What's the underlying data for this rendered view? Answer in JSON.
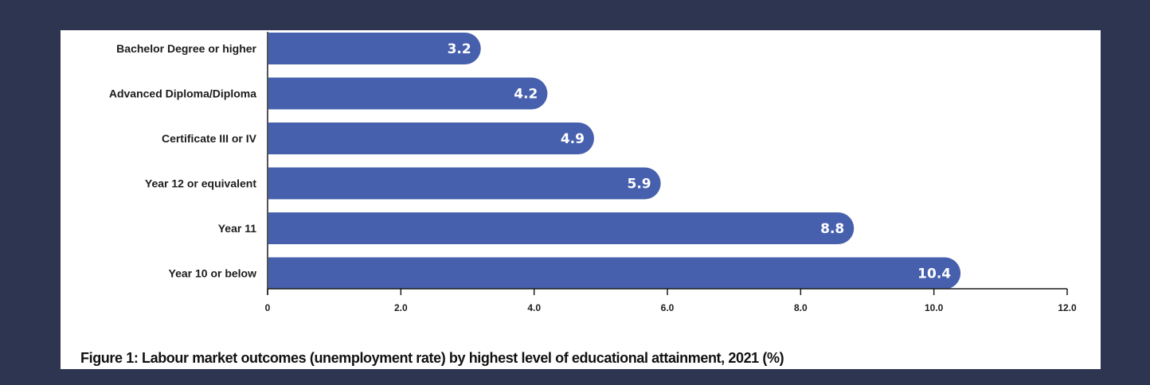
{
  "chart_data": {
    "type": "bar",
    "orientation": "horizontal",
    "categories": [
      "Bachelor Degree or higher",
      "Advanced Diploma/Diploma",
      "Certificate III or IV",
      "Year 12 or equivalent",
      "Year 11",
      "Year 10 or below"
    ],
    "values": [
      3.2,
      4.2,
      4.9,
      5.9,
      8.8,
      10.4
    ],
    "value_labels": [
      "3.2",
      "4.2",
      "4.9",
      "5.9",
      "8.8",
      "10.4"
    ],
    "xlim": [
      0,
      12
    ],
    "x_ticks": [
      0,
      2,
      4,
      6,
      8,
      10,
      12
    ],
    "x_tick_labels": [
      "0",
      "2.0",
      "4.0",
      "6.0",
      "8.0",
      "10.0",
      "12.0"
    ],
    "title": "Figure 1: Labour market outcomes (unemployment rate) by highest level of educational attainment, 2021 (%)",
    "grid": false,
    "legend": "none",
    "colors": {
      "bar": "#4660ad",
      "value_text": "#ffffff",
      "background": "#2e3551",
      "panel": "#ffffff"
    }
  }
}
